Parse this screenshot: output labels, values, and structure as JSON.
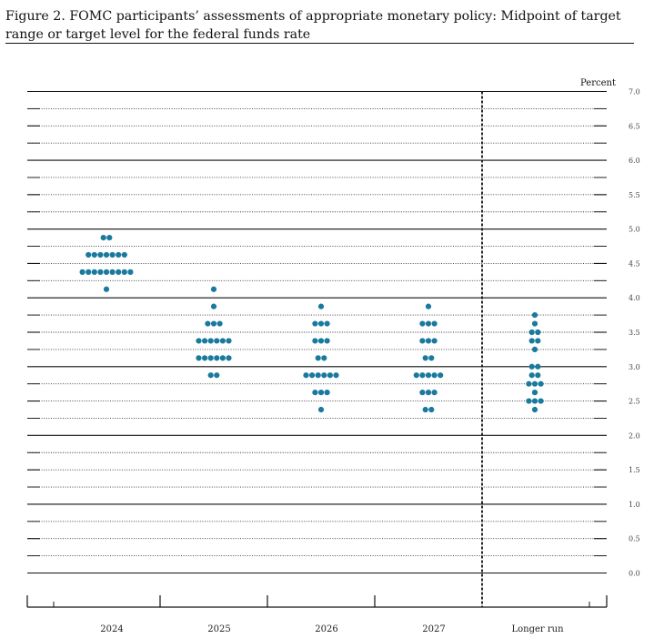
{
  "figure": {
    "title": "Figure 2.  FOMC participants’ assessments of appropriate monetary policy: Midpoint of target range or target level for the federal funds rate"
  },
  "chart_data": {
    "type": "scatter",
    "title": "Figure 2.  FOMC participants’ assessments of appropriate monetary policy: Midpoint of target range or target level for the federal funds rate",
    "ylabel": "Percent",
    "ylim": [
      0,
      7
    ],
    "y_ticks": [
      "0.0",
      "0.5",
      "1.0",
      "1.5",
      "2.0",
      "2.5",
      "3.0",
      "3.5",
      "4.0",
      "4.5",
      "5.0",
      "5.5",
      "6.0",
      "6.5",
      "7.0"
    ],
    "categories": [
      "2024",
      "2025",
      "2026",
      "2027",
      "Longer run"
    ],
    "dot_color": "#1a7a9e",
    "series": [
      {
        "category": "2024",
        "points": [
          {
            "y": 4.875,
            "count": 2
          },
          {
            "y": 4.625,
            "count": 7
          },
          {
            "y": 4.375,
            "count": 9
          },
          {
            "y": 4.125,
            "count": 1
          }
        ]
      },
      {
        "category": "2025",
        "points": [
          {
            "y": 4.125,
            "count": 1
          },
          {
            "y": 3.875,
            "count": 1
          },
          {
            "y": 3.625,
            "count": 3
          },
          {
            "y": 3.375,
            "count": 6
          },
          {
            "y": 3.125,
            "count": 6
          },
          {
            "y": 2.875,
            "count": 2
          }
        ]
      },
      {
        "category": "2026",
        "points": [
          {
            "y": 3.875,
            "count": 1
          },
          {
            "y": 3.625,
            "count": 3
          },
          {
            "y": 3.375,
            "count": 3
          },
          {
            "y": 3.125,
            "count": 2
          },
          {
            "y": 2.875,
            "count": 6
          },
          {
            "y": 2.625,
            "count": 3
          },
          {
            "y": 2.375,
            "count": 1
          }
        ]
      },
      {
        "category": "2027",
        "points": [
          {
            "y": 3.875,
            "count": 1
          },
          {
            "y": 3.625,
            "count": 3
          },
          {
            "y": 3.375,
            "count": 3
          },
          {
            "y": 3.125,
            "count": 2
          },
          {
            "y": 2.875,
            "count": 5
          },
          {
            "y": 2.625,
            "count": 3
          },
          {
            "y": 2.375,
            "count": 2
          }
        ]
      },
      {
        "category": "Longer run",
        "points": [
          {
            "y": 3.75,
            "count": 1
          },
          {
            "y": 3.625,
            "count": 1
          },
          {
            "y": 3.5,
            "count": 2
          },
          {
            "y": 3.375,
            "count": 2
          },
          {
            "y": 3.25,
            "count": 1
          },
          {
            "y": 3.0,
            "count": 2
          },
          {
            "y": 2.875,
            "count": 2
          },
          {
            "y": 2.75,
            "count": 3
          },
          {
            "y": 2.625,
            "count": 1
          },
          {
            "y": 2.5,
            "count": 3
          },
          {
            "y": 2.375,
            "count": 1
          }
        ]
      }
    ]
  }
}
